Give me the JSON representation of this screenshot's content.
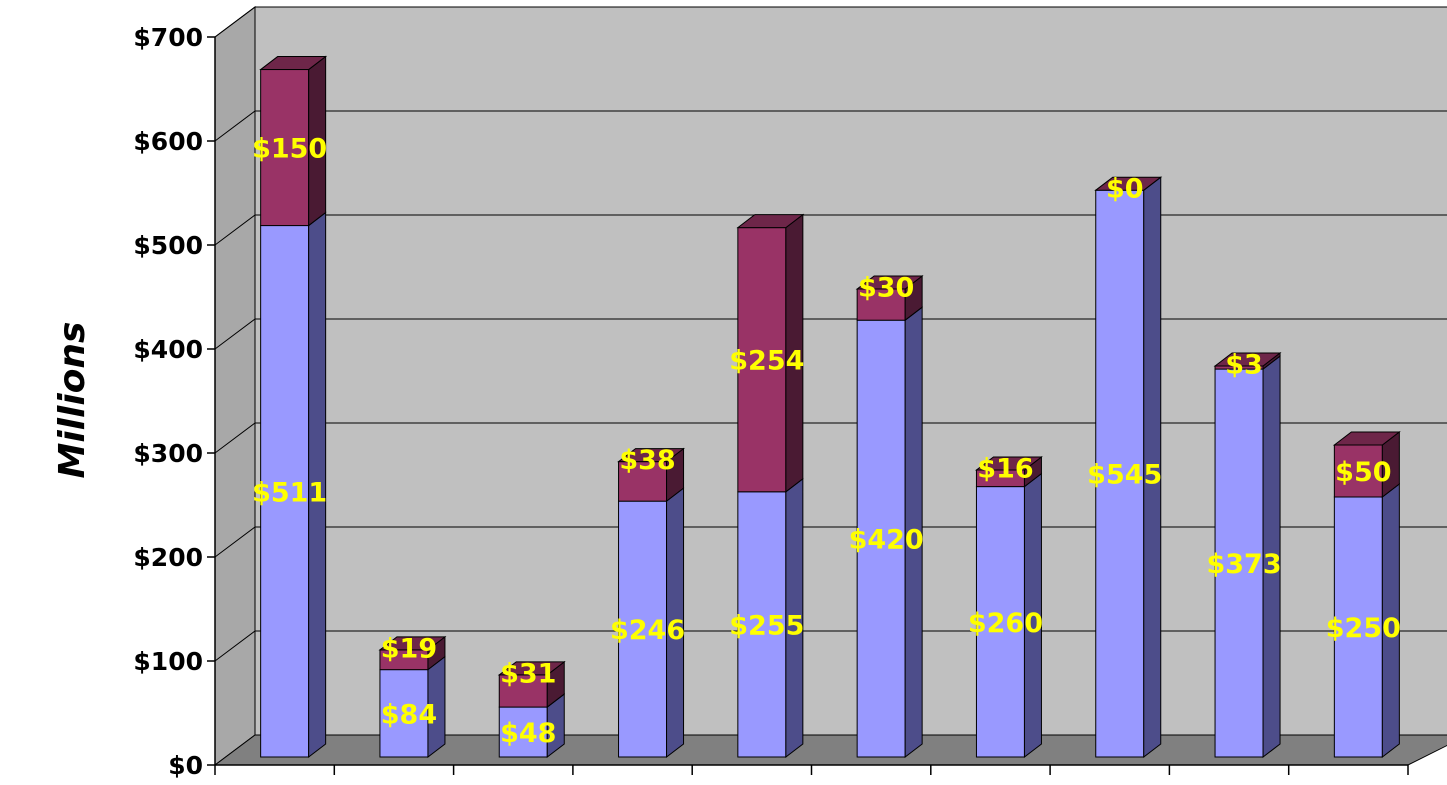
{
  "chart_data": {
    "type": "bar",
    "stacked": true,
    "three_d": true,
    "title": "",
    "xlabel": "",
    "ylabel": "Millions",
    "ylim": [
      0,
      700
    ],
    "ytick_step": 100,
    "ytick_labels": [
      "$0",
      "$100",
      "$200",
      "$300",
      "$400",
      "$500",
      "$600",
      "$700"
    ],
    "grid": true,
    "legend": "none",
    "categories": [
      "",
      "",
      "",
      "",
      "",
      "",
      "",
      "",
      "",
      ""
    ],
    "series": [
      {
        "values": [
          511,
          84,
          48,
          246,
          255,
          420,
          260,
          545,
          373,
          250
        ],
        "labels": [
          "$511",
          "$84",
          "$48",
          "$246",
          "$255",
          "$420",
          "$260",
          "$545",
          "$373",
          "$250"
        ]
      },
      {
        "values": [
          150,
          19,
          31,
          38,
          254,
          30,
          16,
          0,
          3,
          50
        ],
        "labels": [
          "$150",
          "$19",
          "$31",
          "$38",
          "$254",
          "$30",
          "$16",
          "$0",
          "$3",
          "$50"
        ]
      }
    ]
  },
  "colors": {
    "series_front": [
      "#9999ff",
      "#993366"
    ],
    "series_side": [
      "#4d4d8a",
      "#4a1a33"
    ],
    "series_top": [
      "#7a7acc",
      "#6e2649"
    ],
    "wall": "#c0c0c0",
    "floor": "#808080",
    "data_label": "#ffff00",
    "gridline": "#000000"
  }
}
